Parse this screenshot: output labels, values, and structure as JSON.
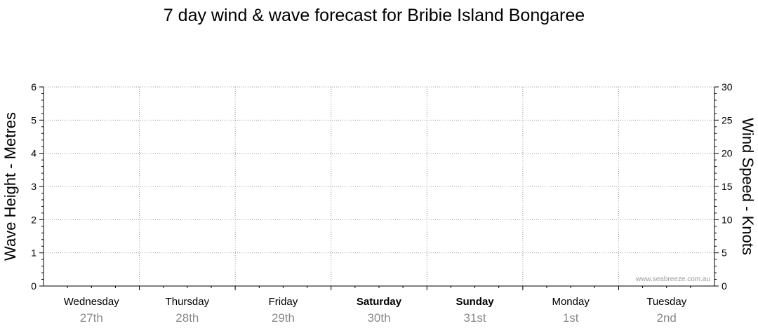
{
  "chart_data": {
    "type": "line",
    "title": "7 day wind & wave forecast for Bribie Island Bongaree",
    "ylabel_left": "Wave Height - Metres",
    "ylabel_right": "Wind Speed - Knots",
    "ylim_left": [
      0,
      6
    ],
    "ylim_right": [
      0,
      30
    ],
    "yticks_left": [
      "0",
      "1",
      "2",
      "3",
      "4",
      "5",
      "6"
    ],
    "yticks_right": [
      "0",
      "5",
      "10",
      "15",
      "20",
      "25",
      "30"
    ],
    "days": [
      {
        "name": "Wednesday",
        "date": "27th",
        "bold": false
      },
      {
        "name": "Thursday",
        "date": "28th",
        "bold": false
      },
      {
        "name": "Friday",
        "date": "29th",
        "bold": false
      },
      {
        "name": "Saturday",
        "date": "30th",
        "bold": true
      },
      {
        "name": "Sunday",
        "date": "31st",
        "bold": true
      },
      {
        "name": "Monday",
        "date": "1st",
        "bold": false
      },
      {
        "name": "Tuesday",
        "date": "2nd",
        "bold": false
      }
    ],
    "series": [],
    "grid": true,
    "watermark": "www.seabreeze.com.au"
  }
}
